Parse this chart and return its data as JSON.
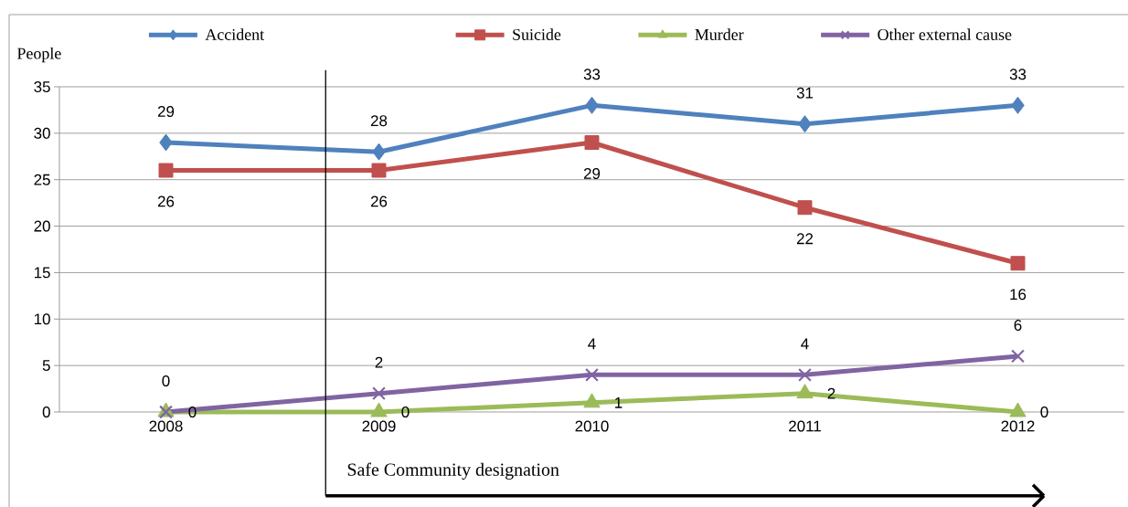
{
  "chart_data": {
    "type": "line",
    "ylabel": "People",
    "x": [
      2008,
      2009,
      2010,
      2011,
      2012
    ],
    "xlim": [
      2007.5,
      2012.5
    ],
    "xticks": [
      2008,
      2009,
      2010,
      2011,
      2012
    ],
    "series": [
      {
        "name": "Accident",
        "color": "#4f81bd",
        "marker": "diamond",
        "values": [
          29,
          28,
          33,
          31,
          33
        ]
      },
      {
        "name": "Suicide",
        "color": "#c0504d",
        "marker": "square",
        "values": [
          26,
          26,
          29,
          22,
          16
        ]
      },
      {
        "name": "Murder",
        "color": "#9bbb59",
        "marker": "triangle",
        "values": [
          0,
          0,
          1,
          2,
          0
        ]
      },
      {
        "name": "Other external cause",
        "color": "#8064a2",
        "marker": "cross",
        "values": [
          0,
          2,
          4,
          4,
          6
        ]
      }
    ],
    "ylim": [
      0,
      35
    ],
    "yticks": [
      0,
      5,
      10,
      15,
      20,
      25,
      30,
      35
    ],
    "grid": "y",
    "legend": "top",
    "data_labels": true,
    "ref_lines": [
      {
        "axis": "x",
        "value": 2008.75,
        "label": "Safe Community designation",
        "color": "#000000"
      }
    ]
  }
}
